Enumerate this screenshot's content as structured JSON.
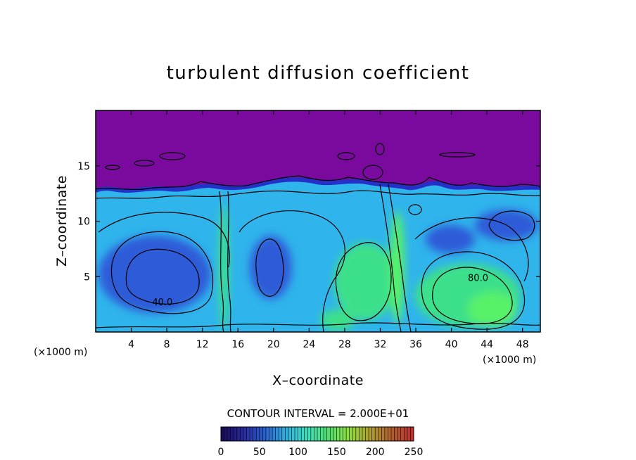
{
  "chart_data": {
    "type": "heatmap",
    "title": "turbulent diffusion coefficient",
    "xlabel": "X–coordinate",
    "ylabel": "Z–coordinate",
    "x_unit": "(×1000 m)",
    "x_unit_right": "(×1000 m)",
    "xlim": [
      0,
      50
    ],
    "ylim": [
      0,
      20
    ],
    "x_ticks": [
      4,
      8,
      12,
      16,
      20,
      24,
      28,
      32,
      36,
      40,
      44,
      48
    ],
    "y_ticks": [
      5,
      10,
      15
    ],
    "contour_interval_text": "CONTOUR INTERVAL = 2.000E+01",
    "contour_labels": [
      {
        "text": "40.0",
        "x": 7.5,
        "z": 2.4
      },
      {
        "text": "80.0",
        "x": 43.0,
        "z": 4.6
      }
    ],
    "colorbar": {
      "min": 0,
      "max": 250,
      "ticks": [
        0,
        50,
        100,
        150,
        200,
        250
      ],
      "colors": [
        "#1a0a5a",
        "#2a2aa0",
        "#2a60d0",
        "#30b0e0",
        "#40e0c0",
        "#50e070",
        "#90e040",
        "#b0a030",
        "#b06030",
        "#c03030"
      ]
    },
    "field_colors": {
      "upper_layer": "#7a0a9e",
      "band": "#2430c8",
      "blue": "#2d5cd8",
      "cyan": "#2fb4ec",
      "green": "#3de08a",
      "light_green": "#58f268"
    }
  }
}
